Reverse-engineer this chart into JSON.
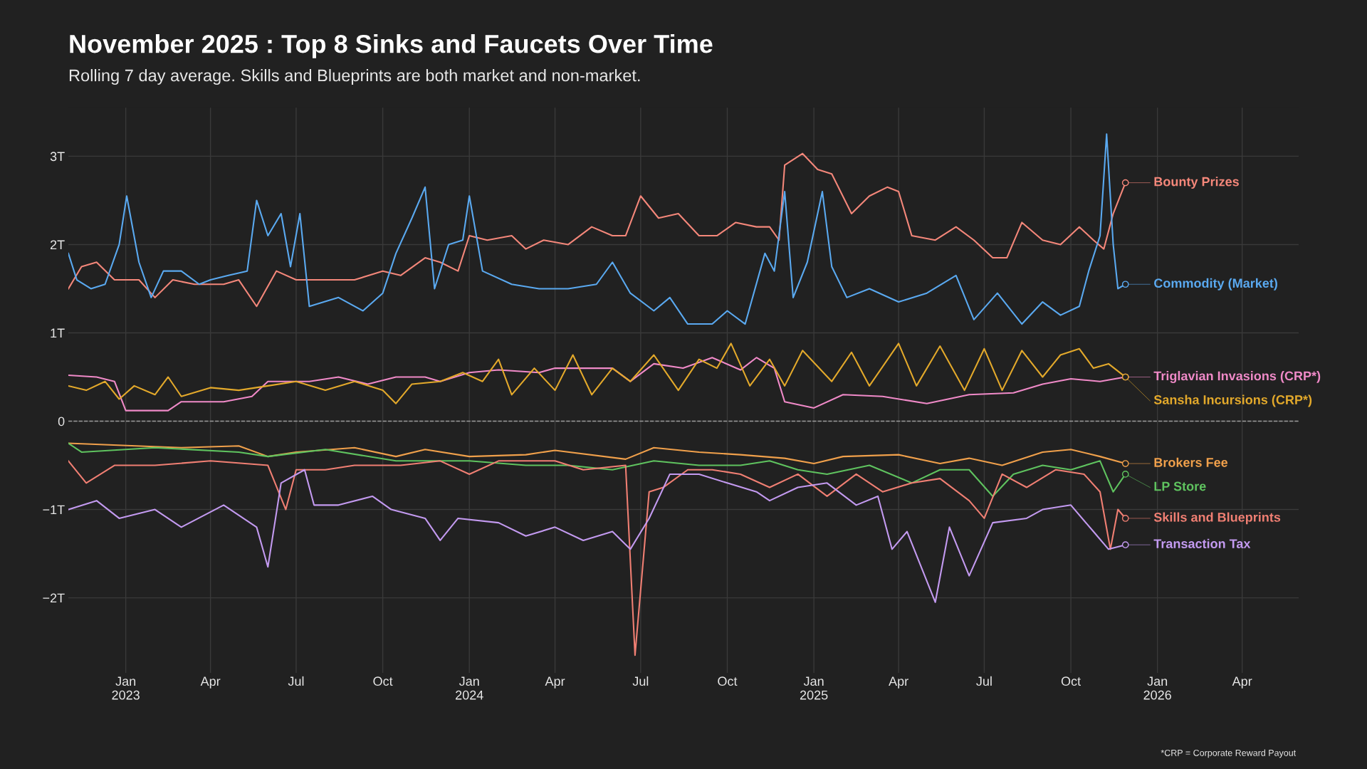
{
  "chart_data": {
    "type": "line",
    "title": "November 2025 : Top 8 Sinks and Faucets Over Time",
    "subtitle": "Rolling 7 day average. Skills and Blueprints are both market and non-market.",
    "annotations": [
      "*CRP = Corporate Reward Payout"
    ],
    "xlim": [
      "2022-11-01",
      "2026-05-31"
    ],
    "xticks": [
      {
        "value": "2023-01-01",
        "label": "Jan\n2023"
      },
      {
        "value": "2023-04-01",
        "label": "Apr"
      },
      {
        "value": "2023-07-01",
        "label": "Jul"
      },
      {
        "value": "2023-10-01",
        "label": "Oct"
      },
      {
        "value": "2024-01-01",
        "label": "Jan\n2024"
      },
      {
        "value": "2024-04-01",
        "label": "Apr"
      },
      {
        "value": "2024-07-01",
        "label": "Jul"
      },
      {
        "value": "2024-10-01",
        "label": "Oct"
      },
      {
        "value": "2025-01-01",
        "label": "Jan\n2025"
      },
      {
        "value": "2025-04-01",
        "label": "Apr"
      },
      {
        "value": "2025-07-01",
        "label": "Jul"
      },
      {
        "value": "2025-10-01",
        "label": "Oct"
      },
      {
        "value": "2026-01-01",
        "label": "Jan\n2026"
      },
      {
        "value": "2026-04-01",
        "label": "Apr"
      }
    ],
    "ylim": [
      -2.85,
      3.55
    ],
    "yticks": [
      {
        "value": -2,
        "label": "−2T"
      },
      {
        "value": -1,
        "label": "−1T"
      },
      0,
      {
        "value": 1,
        "label": "1T"
      },
      {
        "value": 2,
        "label": "2T"
      },
      {
        "value": 3,
        "label": "3T"
      }
    ],
    "grid": true,
    "legend": "right",
    "line_style": "solid",
    "ref_lines": [
      {
        "axis": "y",
        "value": 0,
        "label": null,
        "color": "#9a9a9a",
        "line_style": "dashed"
      }
    ],
    "series": [
      {
        "name": "Bounty Prizes",
        "color": "#f4877a",
        "x": [
          "2022-11-01",
          "2022-11-15",
          "2022-12-01",
          "2022-12-20",
          "2023-01-15",
          "2023-02-01",
          "2023-02-20",
          "2023-03-15",
          "2023-04-15",
          "2023-05-01",
          "2023-05-20",
          "2023-06-10",
          "2023-07-01",
          "2023-08-01",
          "2023-09-01",
          "2023-10-01",
          "2023-10-20",
          "2023-11-15",
          "2023-12-01",
          "2023-12-20",
          "2024-01-01",
          "2024-01-20",
          "2024-02-15",
          "2024-03-01",
          "2024-03-20",
          "2024-04-15",
          "2024-05-10",
          "2024-06-01",
          "2024-06-15",
          "2024-07-01",
          "2024-07-20",
          "2024-08-10",
          "2024-09-01",
          "2024-09-20",
          "2024-10-10",
          "2024-11-01",
          "2024-11-15",
          "2024-11-25",
          "2024-12-01",
          "2024-12-20",
          "2025-01-05",
          "2025-01-20",
          "2025-02-10",
          "2025-03-01",
          "2025-03-20",
          "2025-04-01",
          "2025-04-15",
          "2025-05-10",
          "2025-06-01",
          "2025-06-20",
          "2025-07-10",
          "2025-07-25",
          "2025-08-10",
          "2025-09-01",
          "2025-09-20",
          "2025-10-10",
          "2025-10-25",
          "2025-11-05",
          "2025-11-15",
          "2025-11-28"
        ],
        "values": [
          1.5,
          1.75,
          1.8,
          1.6,
          1.6,
          1.4,
          1.6,
          1.55,
          1.55,
          1.6,
          1.3,
          1.7,
          1.6,
          1.6,
          1.6,
          1.7,
          1.65,
          1.85,
          1.8,
          1.7,
          2.1,
          2.05,
          2.1,
          1.95,
          2.05,
          2.0,
          2.2,
          2.1,
          2.1,
          2.55,
          2.3,
          2.35,
          2.1,
          2.1,
          2.25,
          2.2,
          2.2,
          2.05,
          2.9,
          3.03,
          2.85,
          2.8,
          2.35,
          2.55,
          2.65,
          2.6,
          2.1,
          2.05,
          2.2,
          2.05,
          1.85,
          1.85,
          2.25,
          2.05,
          2.0,
          2.2,
          2.05,
          1.95,
          2.35,
          2.7
        ]
      },
      {
        "name": "Commodity (Market)",
        "color": "#5aa9f0",
        "x": [
          "2022-11-01",
          "2022-11-10",
          "2022-11-25",
          "2022-12-10",
          "2022-12-25",
          "2023-01-02",
          "2023-01-15",
          "2023-01-28",
          "2023-02-10",
          "2023-03-01",
          "2023-03-20",
          "2023-04-01",
          "2023-04-20",
          "2023-05-10",
          "2023-05-20",
          "2023-06-01",
          "2023-06-15",
          "2023-06-25",
          "2023-07-05",
          "2023-07-15",
          "2023-08-15",
          "2023-09-10",
          "2023-10-01",
          "2023-10-15",
          "2023-11-01",
          "2023-11-15",
          "2023-11-25",
          "2023-12-10",
          "2023-12-25",
          "2024-01-01",
          "2024-01-15",
          "2024-02-15",
          "2024-03-15",
          "2024-04-15",
          "2024-05-15",
          "2024-06-01",
          "2024-06-20",
          "2024-07-15",
          "2024-08-01",
          "2024-08-20",
          "2024-09-15",
          "2024-10-01",
          "2024-10-20",
          "2024-11-10",
          "2024-11-20",
          "2024-12-01",
          "2024-12-10",
          "2024-12-25",
          "2025-01-10",
          "2025-01-20",
          "2025-02-05",
          "2025-03-01",
          "2025-04-01",
          "2025-05-01",
          "2025-06-01",
          "2025-06-20",
          "2025-07-15",
          "2025-08-10",
          "2025-09-01",
          "2025-09-20",
          "2025-10-10",
          "2025-10-20",
          "2025-11-01",
          "2025-11-08",
          "2025-11-15",
          "2025-11-20",
          "2025-11-28"
        ],
        "values": [
          1.9,
          1.6,
          1.5,
          1.55,
          2.0,
          2.55,
          1.8,
          1.4,
          1.7,
          1.7,
          1.55,
          1.6,
          1.65,
          1.7,
          2.5,
          2.1,
          2.35,
          1.75,
          2.35,
          1.3,
          1.4,
          1.25,
          1.45,
          1.9,
          2.3,
          2.65,
          1.5,
          2.0,
          2.05,
          2.55,
          1.7,
          1.55,
          1.5,
          1.5,
          1.55,
          1.8,
          1.45,
          1.25,
          1.4,
          1.1,
          1.1,
          1.25,
          1.1,
          1.9,
          1.7,
          2.6,
          1.4,
          1.8,
          2.6,
          1.75,
          1.4,
          1.5,
          1.35,
          1.45,
          1.65,
          1.15,
          1.45,
          1.1,
          1.35,
          1.2,
          1.3,
          1.7,
          2.1,
          3.25,
          2.0,
          1.5,
          1.55
        ]
      },
      {
        "name": "Triglavian Invasions (CRP*)",
        "color": "#f08ac8",
        "x": [
          "2022-11-01",
          "2022-12-01",
          "2022-12-20",
          "2023-01-01",
          "2023-02-15",
          "2023-03-01",
          "2023-04-15",
          "2023-05-15",
          "2023-06-01",
          "2023-07-15",
          "2023-08-15",
          "2023-09-15",
          "2023-10-15",
          "2023-11-15",
          "2023-12-01",
          "2024-01-01",
          "2024-02-01",
          "2024-03-15",
          "2024-04-01",
          "2024-05-15",
          "2024-06-01",
          "2024-06-20",
          "2024-07-15",
          "2024-08-15",
          "2024-09-15",
          "2024-10-15",
          "2024-11-01",
          "2024-11-20",
          "2024-12-01",
          "2025-01-01",
          "2025-02-01",
          "2025-03-15",
          "2025-05-01",
          "2025-06-15",
          "2025-08-01",
          "2025-09-01",
          "2025-10-01",
          "2025-11-01",
          "2025-11-28"
        ],
        "values": [
          0.52,
          0.5,
          0.45,
          0.12,
          0.12,
          0.22,
          0.22,
          0.28,
          0.45,
          0.45,
          0.5,
          0.42,
          0.5,
          0.5,
          0.45,
          0.55,
          0.58,
          0.55,
          0.6,
          0.6,
          0.6,
          0.45,
          0.65,
          0.6,
          0.72,
          0.58,
          0.72,
          0.6,
          0.22,
          0.15,
          0.3,
          0.28,
          0.2,
          0.3,
          0.32,
          0.42,
          0.48,
          0.45,
          0.5
        ]
      },
      {
        "name": "Sansha Incursions (CRP*)",
        "color": "#e3a92b",
        "x": [
          "2022-11-01",
          "2022-11-20",
          "2022-12-10",
          "2022-12-25",
          "2023-01-10",
          "2023-02-01",
          "2023-02-15",
          "2023-03-01",
          "2023-04-01",
          "2023-05-01",
          "2023-06-01",
          "2023-07-01",
          "2023-08-01",
          "2023-09-01",
          "2023-10-01",
          "2023-10-15",
          "2023-11-01",
          "2023-12-01",
          "2023-12-25",
          "2024-01-15",
          "2024-02-01",
          "2024-02-15",
          "2024-03-10",
          "2024-04-01",
          "2024-04-20",
          "2024-05-10",
          "2024-06-01",
          "2024-06-20",
          "2024-07-15",
          "2024-08-10",
          "2024-09-01",
          "2024-09-20",
          "2024-10-05",
          "2024-10-25",
          "2024-11-15",
          "2024-12-01",
          "2024-12-20",
          "2025-01-20",
          "2025-02-10",
          "2025-03-01",
          "2025-04-01",
          "2025-04-20",
          "2025-05-15",
          "2025-06-10",
          "2025-07-01",
          "2025-07-20",
          "2025-08-10",
          "2025-09-01",
          "2025-09-20",
          "2025-10-10",
          "2025-10-25",
          "2025-11-10",
          "2025-11-28"
        ],
        "values": [
          0.4,
          0.35,
          0.45,
          0.25,
          0.4,
          0.3,
          0.5,
          0.28,
          0.38,
          0.35,
          0.4,
          0.45,
          0.35,
          0.45,
          0.35,
          0.2,
          0.42,
          0.45,
          0.55,
          0.45,
          0.7,
          0.3,
          0.6,
          0.35,
          0.75,
          0.3,
          0.6,
          0.45,
          0.75,
          0.35,
          0.7,
          0.6,
          0.88,
          0.4,
          0.7,
          0.4,
          0.8,
          0.45,
          0.78,
          0.4,
          0.88,
          0.4,
          0.85,
          0.35,
          0.82,
          0.35,
          0.8,
          0.5,
          0.75,
          0.82,
          0.6,
          0.65,
          0.5
        ]
      },
      {
        "name": "Brokers Fee",
        "color": "#f0a04b",
        "x": [
          "2022-11-01",
          "2023-03-01",
          "2023-05-01",
          "2023-06-01",
          "2023-07-01",
          "2023-09-01",
          "2023-10-15",
          "2023-11-15",
          "2024-01-01",
          "2024-03-01",
          "2024-04-01",
          "2024-06-15",
          "2024-07-15",
          "2024-09-01",
          "2024-10-15",
          "2024-12-01",
          "2025-01-01",
          "2025-02-01",
          "2025-04-01",
          "2025-05-15",
          "2025-06-15",
          "2025-07-20",
          "2025-09-01",
          "2025-10-01",
          "2025-11-01",
          "2025-11-28"
        ],
        "values": [
          -0.25,
          -0.3,
          -0.28,
          -0.4,
          -0.35,
          -0.3,
          -0.4,
          -0.32,
          -0.4,
          -0.38,
          -0.33,
          -0.43,
          -0.3,
          -0.35,
          -0.38,
          -0.42,
          -0.48,
          -0.4,
          -0.38,
          -0.48,
          -0.42,
          -0.5,
          -0.35,
          -0.32,
          -0.4,
          -0.48
        ]
      },
      {
        "name": "LP Store",
        "color": "#5fc35f",
        "x": [
          "2022-11-01",
          "2022-11-15",
          "2023-02-01",
          "2023-05-01",
          "2023-06-01",
          "2023-08-01",
          "2023-10-15",
          "2024-01-01",
          "2024-03-01",
          "2024-04-15",
          "2024-06-01",
          "2024-07-15",
          "2024-09-01",
          "2024-10-15",
          "2024-11-15",
          "2024-12-15",
          "2025-01-15",
          "2025-03-01",
          "2025-04-15",
          "2025-05-15",
          "2025-06-15",
          "2025-07-10",
          "2025-08-01",
          "2025-09-01",
          "2025-10-01",
          "2025-11-01",
          "2025-11-15",
          "2025-11-28"
        ],
        "values": [
          -0.25,
          -0.35,
          -0.3,
          -0.35,
          -0.4,
          -0.32,
          -0.45,
          -0.45,
          -0.5,
          -0.5,
          -0.55,
          -0.45,
          -0.5,
          -0.5,
          -0.45,
          -0.55,
          -0.6,
          -0.5,
          -0.7,
          -0.55,
          -0.55,
          -0.85,
          -0.6,
          -0.5,
          -0.55,
          -0.45,
          -0.8,
          -0.6
        ]
      },
      {
        "name": "Skills and Blueprints",
        "color": "#f07f73",
        "x": [
          "2022-11-01",
          "2022-11-20",
          "2022-12-20",
          "2023-02-01",
          "2023-04-01",
          "2023-06-01",
          "2023-06-20",
          "2023-07-01",
          "2023-08-01",
          "2023-09-01",
          "2023-10-20",
          "2023-12-01",
          "2024-01-01",
          "2024-02-01",
          "2024-04-01",
          "2024-05-01",
          "2024-06-15",
          "2024-06-25",
          "2024-07-10",
          "2024-07-25",
          "2024-08-20",
          "2024-09-15",
          "2024-10-15",
          "2024-11-15",
          "2024-12-15",
          "2025-01-15",
          "2025-02-15",
          "2025-03-15",
          "2025-04-15",
          "2025-05-15",
          "2025-06-15",
          "2025-07-01",
          "2025-07-20",
          "2025-08-15",
          "2025-09-15",
          "2025-10-15",
          "2025-11-01",
          "2025-11-12",
          "2025-11-20",
          "2025-11-28"
        ],
        "values": [
          -0.45,
          -0.7,
          -0.5,
          -0.5,
          -0.45,
          -0.5,
          -1.0,
          -0.55,
          -0.55,
          -0.5,
          -0.5,
          -0.45,
          -0.6,
          -0.45,
          -0.45,
          -0.55,
          -0.5,
          -2.65,
          -0.8,
          -0.75,
          -0.55,
          -0.55,
          -0.6,
          -0.75,
          -0.6,
          -0.85,
          -0.6,
          -0.8,
          -0.7,
          -0.65,
          -0.9,
          -1.1,
          -0.6,
          -0.75,
          -0.55,
          -0.6,
          -0.8,
          -1.45,
          -1.0,
          -1.1
        ]
      },
      {
        "name": "Transaction Tax",
        "color": "#c39af0",
        "x": [
          "2022-11-01",
          "2022-12-01",
          "2022-12-25",
          "2023-02-01",
          "2023-03-01",
          "2023-04-15",
          "2023-05-20",
          "2023-06-01",
          "2023-06-15",
          "2023-07-10",
          "2023-07-20",
          "2023-08-15",
          "2023-09-20",
          "2023-10-10",
          "2023-11-15",
          "2023-12-01",
          "2023-12-20",
          "2024-02-01",
          "2024-03-01",
          "2024-04-01",
          "2024-05-01",
          "2024-06-01",
          "2024-06-20",
          "2024-07-10",
          "2024-08-01",
          "2024-09-01",
          "2024-10-01",
          "2024-11-01",
          "2024-11-15",
          "2024-12-15",
          "2025-01-15",
          "2025-02-15",
          "2025-03-10",
          "2025-03-25",
          "2025-04-10",
          "2025-05-10",
          "2025-05-25",
          "2025-06-15",
          "2025-07-10",
          "2025-08-15",
          "2025-09-01",
          "2025-10-01",
          "2025-10-25",
          "2025-11-10",
          "2025-11-28"
        ],
        "values": [
          -1.0,
          -0.9,
          -1.1,
          -1.0,
          -1.2,
          -0.95,
          -1.2,
          -1.65,
          -0.7,
          -0.55,
          -0.95,
          -0.95,
          -0.85,
          -1.0,
          -1.1,
          -1.35,
          -1.1,
          -1.15,
          -1.3,
          -1.2,
          -1.35,
          -1.25,
          -1.45,
          -1.1,
          -0.6,
          -0.6,
          -0.7,
          -0.8,
          -0.9,
          -0.75,
          -0.7,
          -0.95,
          -0.85,
          -1.45,
          -1.25,
          -2.05,
          -1.2,
          -1.75,
          -1.15,
          -1.1,
          -1.0,
          -0.95,
          -1.25,
          -1.45,
          -1.4
        ]
      }
    ]
  }
}
